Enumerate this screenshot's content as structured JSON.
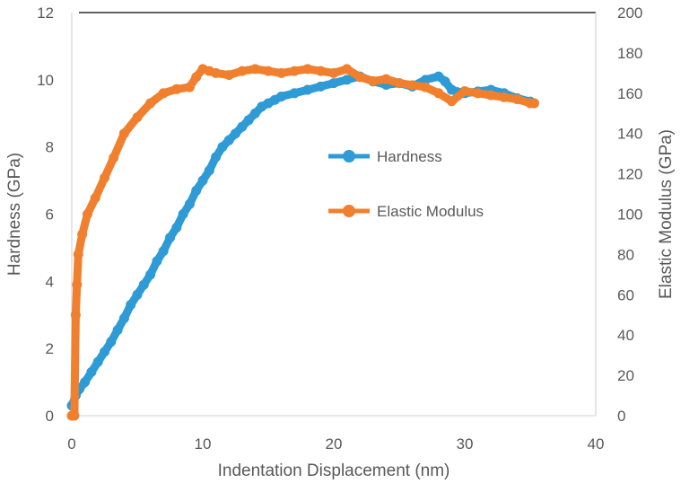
{
  "chart_data": {
    "type": "line",
    "title": "",
    "xlabel": "Indentation Displacement (nm)",
    "ylabel_left": "Hardness (GPa)",
    "ylabel_right": "Elastic Modulus (GPa)",
    "xlim": [
      0,
      40
    ],
    "ylim_left": [
      0,
      12
    ],
    "ylim_right": [
      0,
      200
    ],
    "x_ticks": [
      "0",
      "10",
      "20",
      "30",
      "40"
    ],
    "y_left_ticks": [
      "0",
      "2",
      "4",
      "6",
      "8",
      "10",
      "12"
    ],
    "y_right_ticks": [
      "0",
      "20",
      "40",
      "60",
      "80",
      "100",
      "120",
      "140",
      "160",
      "180",
      "200"
    ],
    "grid": false,
    "legend_position": "center-right",
    "series": [
      {
        "name": "Hardness",
        "axis": "left",
        "color": "#2E9BD6",
        "x": [
          0,
          0.3,
          0.6,
          1.0,
          1.5,
          2,
          2.5,
          3,
          3.5,
          4,
          4.5,
          5,
          5.5,
          6,
          6.5,
          7,
          7.5,
          8,
          8.5,
          9,
          9.5,
          10,
          10.5,
          11,
          11.5,
          12,
          12.5,
          13,
          13.5,
          14,
          14.5,
          15,
          15.5,
          16,
          17,
          18,
          19,
          20,
          21,
          22,
          23,
          24,
          25,
          26,
          27,
          28,
          28.5,
          29,
          30,
          31,
          32,
          33,
          34,
          35,
          35.3
        ],
        "y": [
          0.3,
          0.6,
          0.8,
          1.0,
          1.3,
          1.6,
          1.9,
          2.2,
          2.55,
          2.9,
          3.3,
          3.6,
          3.9,
          4.2,
          4.6,
          4.9,
          5.3,
          5.6,
          6.0,
          6.3,
          6.7,
          7.0,
          7.3,
          7.7,
          8.0,
          8.2,
          8.4,
          8.6,
          8.8,
          9.0,
          9.2,
          9.3,
          9.4,
          9.5,
          9.6,
          9.7,
          9.8,
          9.9,
          10.0,
          10.1,
          9.95,
          9.85,
          9.9,
          9.8,
          10.0,
          10.1,
          9.95,
          9.7,
          9.6,
          9.65,
          9.7,
          9.6,
          9.45,
          9.35,
          9.3
        ]
      },
      {
        "name": "Elastic Modulus",
        "axis": "right",
        "color": "#F07F2E",
        "x": [
          0,
          0.2,
          0.3,
          0.4,
          0.5,
          0.8,
          1.2,
          1.8,
          2.5,
          3.2,
          4,
          5,
          6,
          7,
          8,
          9,
          9.5,
          10,
          10.5,
          11,
          12,
          13,
          14,
          15,
          16,
          17,
          18,
          19,
          20,
          21,
          22,
          23,
          24,
          25,
          26,
          27,
          28,
          29,
          30,
          31,
          32,
          33,
          34,
          35,
          35.3
        ],
        "y": [
          0,
          0,
          50,
          65,
          80,
          90,
          100,
          108,
          118,
          128,
          140,
          148,
          155,
          160,
          162,
          163,
          168,
          172,
          171,
          170,
          169,
          171,
          172,
          171,
          170,
          171,
          172,
          171,
          170,
          172,
          168,
          166,
          167,
          165,
          164,
          163,
          160,
          156,
          161,
          160,
          159,
          158,
          157,
          155,
          155
        ]
      }
    ]
  }
}
